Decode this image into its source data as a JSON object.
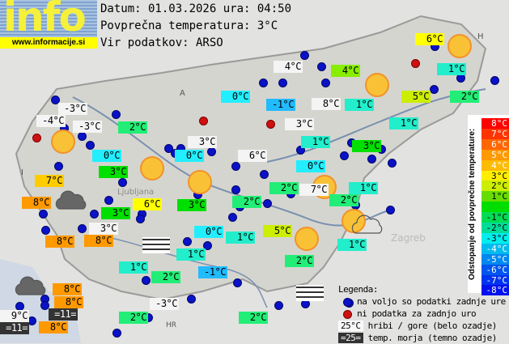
{
  "logo": {
    "text": "info",
    "url": "www.informacije.si"
  },
  "header": {
    "date_line": "Datum: 01.03.2026 ura: 04:50",
    "avg_line": "Povprečna temperatura: 3°C",
    "source_line": "Vir podatkov: ARSO"
  },
  "map_labels": {
    "country_codes": [
      "A",
      "H",
      "I",
      "HR"
    ],
    "cities": [
      "Ljubljana",
      "Zagreb"
    ]
  },
  "colors": {
    "white": "#f4f4f4",
    "orange": "#ff9900",
    "amber": "#ffcc00",
    "yellow": "#ffff00",
    "lime": "#ccee00",
    "yellowgreen": "#88ee00",
    "green": "#00e000",
    "seagreen": "#22ee77",
    "aqua": "#22eecc",
    "cyan": "#22eeff",
    "sky": "#22bbff",
    "dark": "#333333",
    "station_ok": "#0a12c8",
    "station_missing": "#d01010"
  },
  "stations": [
    {
      "t": "-3°C",
      "c": "white"
    },
    {
      "t": "-4°C",
      "c": "white"
    },
    {
      "t": "-3°C",
      "c": "white"
    },
    {
      "t": "2°C",
      "c": "seagreen"
    },
    {
      "t": "0°C",
      "c": "cyan"
    },
    {
      "t": "3°C",
      "c": "green"
    },
    {
      "t": "7°C",
      "c": "amber"
    },
    {
      "t": "8°C",
      "c": "orange"
    },
    {
      "t": "3°C",
      "c": "green"
    },
    {
      "t": "6°C",
      "c": "yellow"
    },
    {
      "t": "3°C",
      "c": "green"
    },
    {
      "t": "3°C",
      "c": "white"
    },
    {
      "t": "8°C",
      "c": "orange"
    },
    {
      "t": "8°C",
      "c": "orange"
    },
    {
      "t": "0°C",
      "c": "cyan"
    },
    {
      "t": "3°C",
      "c": "white"
    },
    {
      "t": "0°C",
      "c": "cyan"
    },
    {
      "t": "4°C",
      "c": "white"
    },
    {
      "t": "4°C",
      "c": "yellowgreen"
    },
    {
      "t": "-1°C",
      "c": "sky"
    },
    {
      "t": "8°C",
      "c": "white"
    },
    {
      "t": "1°C",
      "c": "aqua"
    },
    {
      "t": "6°C",
      "c": "yellow"
    },
    {
      "t": "1°C",
      "c": "aqua"
    },
    {
      "t": "5°C",
      "c": "lime"
    },
    {
      "t": "2°C",
      "c": "seagreen"
    },
    {
      "t": "1°C",
      "c": "aqua"
    },
    {
      "t": "3°C",
      "c": "white"
    },
    {
      "t": "1°C",
      "c": "aqua"
    },
    {
      "t": "3°C",
      "c": "green"
    },
    {
      "t": "6°C",
      "c": "white"
    },
    {
      "t": "0°C",
      "c": "cyan"
    },
    {
      "t": "2°C",
      "c": "seagreen"
    },
    {
      "t": "7°C",
      "c": "white"
    },
    {
      "t": "1°C",
      "c": "aqua"
    },
    {
      "t": "2°C",
      "c": "seagreen"
    },
    {
      "t": "2°C",
      "c": "seagreen"
    },
    {
      "t": "0°C",
      "c": "cyan"
    },
    {
      "t": "1°C",
      "c": "aqua"
    },
    {
      "t": "5°C",
      "c": "lime"
    },
    {
      "t": "1°C",
      "c": "aqua"
    },
    {
      "t": "2°C",
      "c": "seagreen"
    },
    {
      "t": "1°C",
      "c": "aqua"
    },
    {
      "t": "1°C",
      "c": "aqua"
    },
    {
      "t": "2°C",
      "c": "seagreen"
    },
    {
      "t": "-1°C",
      "c": "sky"
    },
    {
      "t": "8°C",
      "c": "orange"
    },
    {
      "t": "8°C",
      "c": "orange"
    },
    {
      "t": "=11=",
      "c": "dark"
    },
    {
      "t": "9°C",
      "c": "white"
    },
    {
      "t": "=11=",
      "c": "dark"
    },
    {
      "t": "8°C",
      "c": "orange"
    },
    {
      "t": "-3°C",
      "c": "white"
    },
    {
      "t": "2°C",
      "c": "seagreen"
    },
    {
      "t": "2°C",
      "c": "seagreen"
    }
  ],
  "scale": {
    "title": "Odstopanje od povprečne temperature:",
    "steps": [
      {
        "t": "8°C",
        "c": "#ff0000"
      },
      {
        "t": "7°C",
        "c": "#ff3300"
      },
      {
        "t": "6°C",
        "c": "#ff6600"
      },
      {
        "t": "5°C",
        "c": "#ff9900"
      },
      {
        "t": "4°C",
        "c": "#ffbb00"
      },
      {
        "t": "3°C",
        "c": "#ffee00"
      },
      {
        "t": "2°C",
        "c": "#ccee00"
      },
      {
        "t": "1°C",
        "c": "#66dd00"
      },
      {
        "t": "",
        "c": "#00dd00"
      },
      {
        "t": "-1°C",
        "c": "#00dd55"
      },
      {
        "t": "-2°C",
        "c": "#00dd99"
      },
      {
        "t": "-3°C",
        "c": "#00eeee"
      },
      {
        "t": "-4°C",
        "c": "#00bbee"
      },
      {
        "t": "-5°C",
        "c": "#0088ee"
      },
      {
        "t": "-6°C",
        "c": "#0055ee"
      },
      {
        "t": "-7°C",
        "c": "#0033ee"
      },
      {
        "t": "-8°C",
        "c": "#0011ee"
      }
    ]
  },
  "legend": {
    "title": "Legenda:",
    "available": "na voljo so podatki zadnje ure",
    "missing": "ni podatka za zadnjo uro",
    "mountain_sample": "25°C",
    "mountain": "hribi / gore (belo ozadje)",
    "sea_sample": "=25=",
    "sea": "temp. morja (temno ozadje)"
  }
}
